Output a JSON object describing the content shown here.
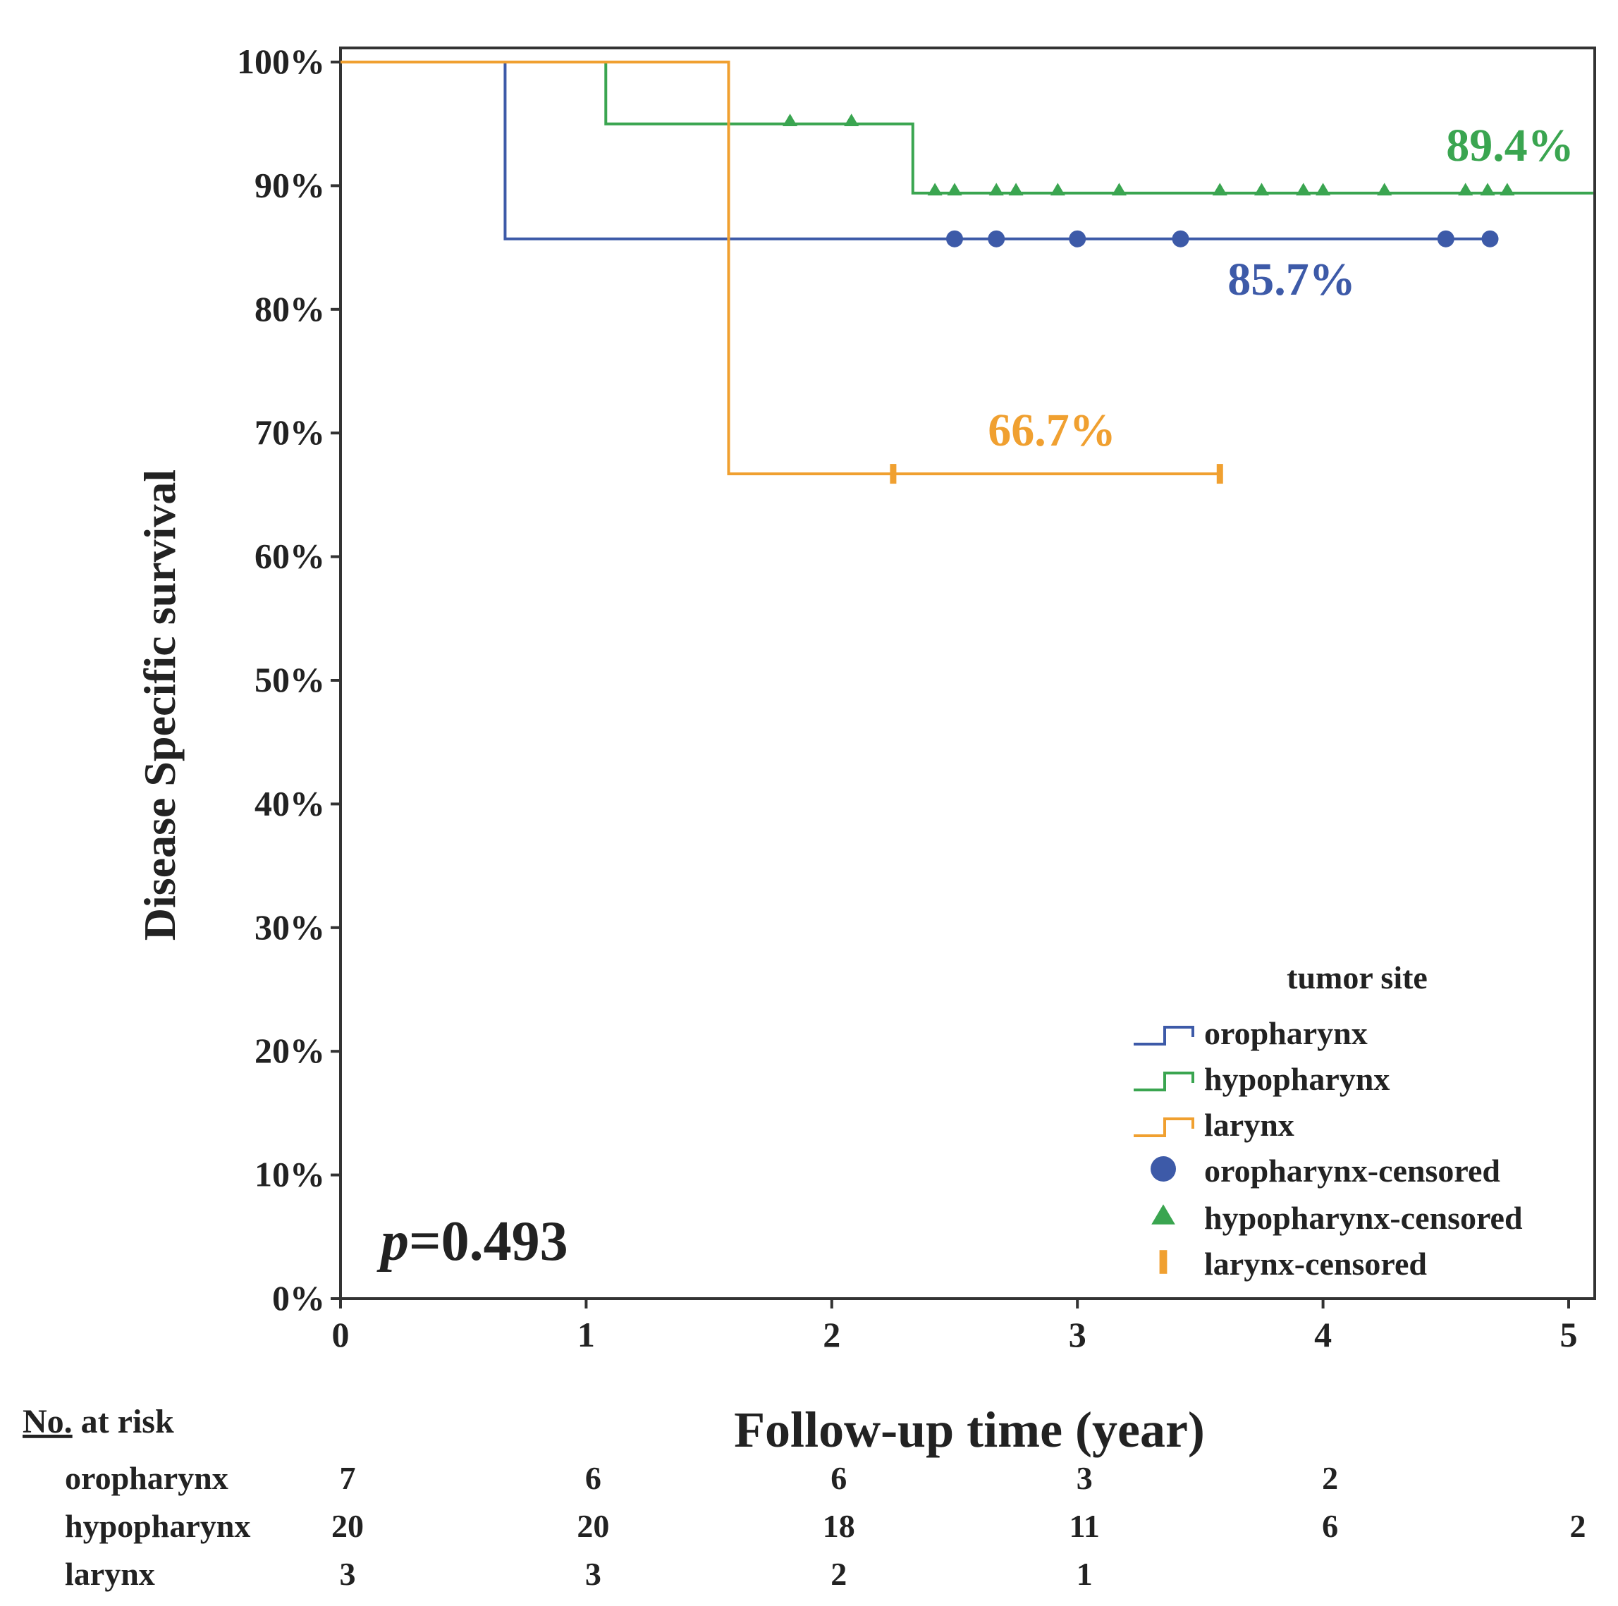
{
  "chart_data": {
    "type": "line",
    "subtype": "kaplan-meier step",
    "title": "",
    "xlabel": "Follow-up time (year)",
    "ylabel": "Disease Specific survival",
    "xlim": [
      0,
      5.1
    ],
    "ylim": [
      0,
      1.0
    ],
    "x_ticks": [
      "0",
      "1",
      "2",
      "3",
      "4",
      "5"
    ],
    "y_ticks": [
      "0%",
      "10%",
      "20%",
      "30%",
      "40%",
      "50%",
      "60%",
      "70%",
      "80%",
      "90%",
      "100%"
    ],
    "grid": false,
    "legend_title": "tumor site",
    "legend_position": "bottom-right",
    "series": [
      {
        "name": "oropharynx",
        "color": "#3d5aa8",
        "marker": "circle",
        "steps": [
          [
            0,
            1.0
          ],
          [
            0.67,
            0.857
          ],
          [
            4.68,
            0.857
          ]
        ],
        "censored_x": [
          2.5,
          2.67,
          3.0,
          3.42,
          4.5,
          4.68
        ],
        "final_label": "85.7%"
      },
      {
        "name": "hypopharynx",
        "color": "#3aa550",
        "marker": "triangle",
        "steps": [
          [
            0,
            1.0
          ],
          [
            1.08,
            0.95
          ],
          [
            2.33,
            0.894
          ],
          [
            5.1,
            0.894
          ]
        ],
        "censored_x": [
          1.83,
          2.08,
          2.42,
          2.5,
          2.67,
          2.75,
          2.92,
          3.17,
          3.58,
          3.75,
          3.92,
          4.0,
          4.25,
          4.58,
          4.67,
          4.75
        ],
        "final_label": "89.4%"
      },
      {
        "name": "larynx",
        "color": "#f0a030",
        "marker": "tick",
        "steps": [
          [
            0,
            1.0
          ],
          [
            1.58,
            0.667
          ],
          [
            3.58,
            0.667
          ]
        ],
        "censored_x": [
          2.25,
          3.58
        ],
        "final_label": "66.7%"
      }
    ],
    "legend_entries": [
      {
        "label": "oropharynx",
        "symbol": "step",
        "color": "#3d5aa8"
      },
      {
        "label": "hypopharynx",
        "symbol": "step",
        "color": "#3aa550"
      },
      {
        "label": "larynx",
        "symbol": "step",
        "color": "#f0a030"
      },
      {
        "label": "oropharynx-censored",
        "symbol": "circle",
        "color": "#3d5aa8"
      },
      {
        "label": "hypopharynx-censored",
        "symbol": "triangle",
        "color": "#3aa550"
      },
      {
        "label": "larynx-censored",
        "symbol": "tick",
        "color": "#f0a030"
      }
    ],
    "annotations": {
      "p_prefix": "p",
      "p_value": "=0.493"
    },
    "risk_table": {
      "header_no": "No.",
      "header_rest": " at risk",
      "rows": [
        {
          "label": "oropharynx",
          "counts": [
            "7",
            "6",
            "6",
            "3",
            "2",
            ""
          ]
        },
        {
          "label": "hypopharynx",
          "counts": [
            "20",
            "20",
            "18",
            "11",
            "6",
            "2"
          ]
        },
        {
          "label": "larynx",
          "counts": [
            "3",
            "3",
            "2",
            "1",
            "",
            ""
          ]
        }
      ]
    }
  }
}
